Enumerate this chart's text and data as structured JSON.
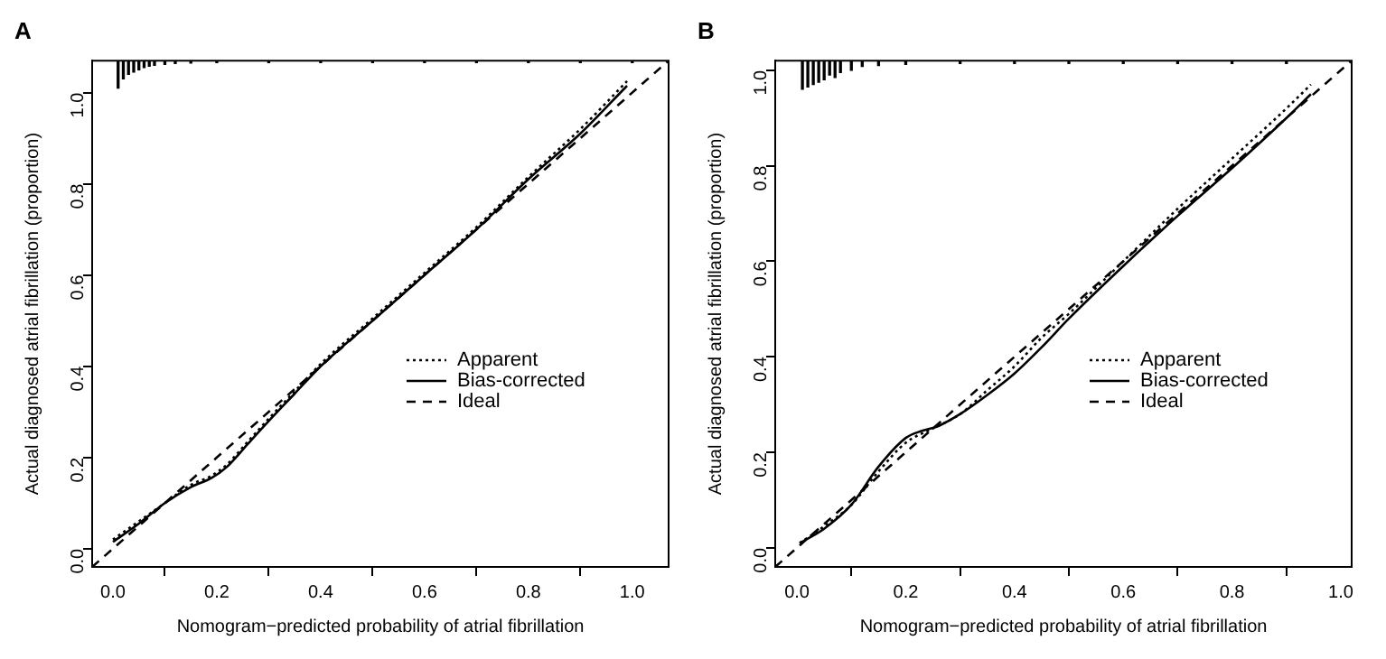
{
  "chart_data": [
    {
      "type": "line",
      "title": "A",
      "xlabel": "Nomogram−predicted probability of atrial fibrillation",
      "ylabel": "Actual diagnosed atrial fibrillation (proportion)",
      "xlim": [
        -0.04,
        1.07
      ],
      "ylim": [
        -0.04,
        1.07
      ],
      "xticks": [
        {
          "value": 0,
          "label": "0.0"
        },
        {
          "value": 0.2,
          "label": "0.2"
        },
        {
          "value": 0.4,
          "label": "0.4"
        },
        {
          "value": 0.6,
          "label": "0.6"
        },
        {
          "value": 0.8,
          "label": "0.8"
        },
        {
          "value": 1,
          "label": "1.0"
        }
      ],
      "yticks": [
        {
          "value": 0,
          "label": "0.0"
        },
        {
          "value": 0.2,
          "label": "0.2"
        },
        {
          "value": 0.4,
          "label": "0.4"
        },
        {
          "value": 0.6,
          "label": "0.6"
        },
        {
          "value": 0.8,
          "label": "0.8"
        },
        {
          "value": 1,
          "label": "1.0"
        }
      ],
      "grid": false,
      "legend": "bottom right",
      "marker": "none",
      "series": [
        {
          "name": "Apparent",
          "color": "#000000",
          "line_style": "dotted",
          "x": [
            0,
            0.05,
            0.1,
            0.15,
            0.19,
            0.22,
            0.26,
            0.3,
            0.35,
            0.4,
            0.5,
            0.6,
            0.7,
            0.8,
            0.9,
            0.99
          ],
          "values": [
            0.02,
            0.06,
            0.1,
            0.14,
            0.16,
            0.185,
            0.235,
            0.285,
            0.345,
            0.405,
            0.505,
            0.605,
            0.705,
            0.815,
            0.92,
            1.025
          ]
        },
        {
          "name": "Bias-corrected",
          "color": "#000000",
          "line_style": "solid",
          "x": [
            0,
            0.05,
            0.1,
            0.15,
            0.19,
            0.22,
            0.26,
            0.3,
            0.35,
            0.4,
            0.5,
            0.6,
            0.7,
            0.8,
            0.9,
            0.99
          ],
          "values": [
            0.015,
            0.055,
            0.1,
            0.135,
            0.155,
            0.18,
            0.23,
            0.28,
            0.34,
            0.4,
            0.5,
            0.6,
            0.7,
            0.81,
            0.91,
            1.015
          ]
        },
        {
          "name": "Ideal",
          "color": "#000000",
          "line_style": "dashed",
          "x": [
            -0.04,
            1.07
          ],
          "values": [
            -0.04,
            1.07
          ]
        },
        {
          "type": "bar",
          "color": "#000000",
          "x": [
            0.01,
            0.02,
            0.03,
            0.04,
            0.05,
            0.06,
            0.07,
            0.08,
            0.1,
            0.12,
            0.15,
            0.2,
            0.3,
            0.4,
            0.5,
            0.6,
            0.7,
            0.8,
            0.9,
            1.0
          ],
          "base": [
            1.07,
            1.07,
            1.07,
            1.07,
            1.07,
            1.07,
            1.07,
            1.07,
            1.07,
            1.07,
            1.07,
            1.07,
            1.07,
            1.07,
            1.07,
            1.07,
            1.07,
            1.07,
            1.07,
            1.07
          ],
          "values": [
            -0.06,
            -0.04,
            -0.03,
            -0.025,
            -0.02,
            -0.015,
            -0.012,
            -0.01,
            -0.008,
            -0.006,
            -0.005,
            -0.004,
            -0.004,
            -0.004,
            -0.004,
            -0.004,
            -0.004,
            -0.004,
            -0.004,
            -0.004
          ]
        }
      ]
    },
    {
      "type": "line",
      "title": "B",
      "xlabel": "Nomogram−predicted probability of atrial fibrillation",
      "ylabel": "Actual diagnosed atrial fibrillation (proportion)",
      "xlim": [
        -0.04,
        1.02
      ],
      "ylim": [
        -0.04,
        1.02
      ],
      "xticks": [
        {
          "value": 0,
          "label": "0.0"
        },
        {
          "value": 0.2,
          "label": "0.2"
        },
        {
          "value": 0.4,
          "label": "0.4"
        },
        {
          "value": 0.6,
          "label": "0.6"
        },
        {
          "value": 0.8,
          "label": "0.8"
        },
        {
          "value": 1,
          "label": "1.0"
        }
      ],
      "yticks": [
        {
          "value": 0,
          "label": "0.0"
        },
        {
          "value": 0.2,
          "label": "0.2"
        },
        {
          "value": 0.4,
          "label": "0.4"
        },
        {
          "value": 0.6,
          "label": "0.6"
        },
        {
          "value": 0.8,
          "label": "0.8"
        },
        {
          "value": 1,
          "label": "1.0"
        }
      ],
      "grid": false,
      "legend": "bottom right",
      "marker": "none",
      "series": [
        {
          "name": "Apparent",
          "color": "#000000",
          "line_style": "dotted",
          "x": [
            0.005,
            0.05,
            0.1,
            0.15,
            0.2,
            0.25,
            0.3,
            0.35,
            0.4,
            0.45,
            0.5,
            0.6,
            0.7,
            0.8,
            0.9,
            0.945
          ],
          "values": [
            0.01,
            0.045,
            0.09,
            0.16,
            0.22,
            0.25,
            0.28,
            0.33,
            0.38,
            0.44,
            0.49,
            0.6,
            0.71,
            0.815,
            0.92,
            0.97
          ]
        },
        {
          "name": "Bias-corrected",
          "color": "#000000",
          "line_style": "solid",
          "x": [
            0.005,
            0.05,
            0.1,
            0.15,
            0.2,
            0.23,
            0.26,
            0.3,
            0.35,
            0.4,
            0.45,
            0.5,
            0.6,
            0.7,
            0.8,
            0.9,
            0.945
          ],
          "values": [
            0.01,
            0.04,
            0.09,
            0.17,
            0.23,
            0.245,
            0.255,
            0.28,
            0.32,
            0.365,
            0.42,
            0.48,
            0.59,
            0.695,
            0.795,
            0.9,
            0.95
          ]
        },
        {
          "name": "Ideal",
          "color": "#000000",
          "line_style": "dashed",
          "x": [
            -0.04,
            1.02
          ],
          "values": [
            -0.04,
            1.02
          ]
        },
        {
          "type": "bar",
          "color": "#000000",
          "x": [
            0.01,
            0.02,
            0.03,
            0.04,
            0.05,
            0.06,
            0.07,
            0.08,
            0.1,
            0.12,
            0.15,
            0.2,
            0.3,
            0.4,
            0.5,
            0.6,
            0.7,
            0.8,
            0.9
          ],
          "base": [
            1.02,
            1.02,
            1.02,
            1.02,
            1.02,
            1.02,
            1.02,
            1.02,
            1.02,
            1.02,
            1.02,
            1.02,
            1.02,
            1.02,
            1.02,
            1.02,
            1.02,
            1.02,
            1.02
          ],
          "values": [
            -0.06,
            -0.055,
            -0.05,
            -0.045,
            -0.04,
            -0.03,
            -0.035,
            -0.025,
            -0.02,
            -0.012,
            -0.01,
            -0.008,
            -0.006,
            -0.006,
            -0.006,
            -0.006,
            -0.006,
            -0.006,
            -0.006
          ]
        }
      ]
    }
  ]
}
